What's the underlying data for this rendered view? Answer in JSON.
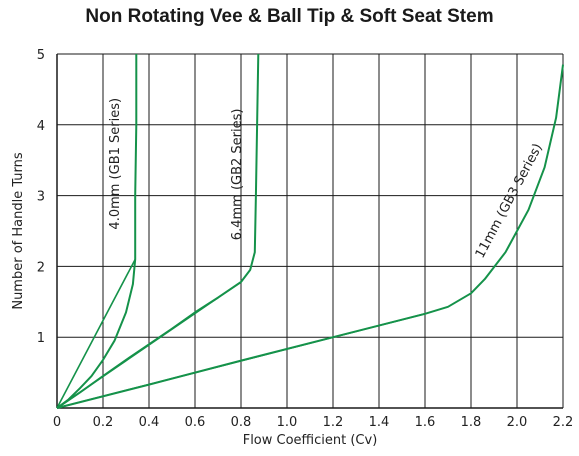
{
  "chart_data": {
    "type": "line",
    "title": "Non Rotating Vee & Ball Tip & Soft Seat Stem",
    "xlabel": "Flow Coefficient (Cv)",
    "ylabel": "Number of Handle Turns",
    "xlim": [
      0,
      2.2
    ],
    "ylim": [
      0,
      5
    ],
    "x_ticks": [
      "0",
      "0.2",
      "0.4",
      "0.6",
      "0.8",
      "1.0",
      "1.2",
      "1.4",
      "1.6",
      "1.8",
      "2.0",
      "2.2"
    ],
    "y_ticks": [
      "1",
      "2",
      "3",
      "4",
      "5"
    ],
    "grid": true,
    "line_color": "#15924a",
    "grid_color": "#1a1a1a",
    "series": [
      {
        "name": "4.0mm (GB1 Series)",
        "points": [
          [
            0,
            0
          ],
          [
            0.05,
            0.12
          ],
          [
            0.1,
            0.28
          ],
          [
            0.15,
            0.45
          ],
          [
            0.2,
            0.68
          ],
          [
            0.25,
            0.95
          ],
          [
            0.3,
            1.35
          ],
          [
            0.33,
            1.75
          ],
          [
            0.34,
            2.1
          ],
          [
            0.34,
            3.0
          ],
          [
            0.345,
            4.0
          ],
          [
            0.345,
            5.0
          ]
        ],
        "straight": [
          [
            0,
            0
          ],
          [
            0.34,
            2.1
          ]
        ]
      },
      {
        "name": "6.4mm (GB2 Series)",
        "points": [
          [
            0,
            0
          ],
          [
            0.1,
            0.22
          ],
          [
            0.2,
            0.45
          ],
          [
            0.3,
            0.68
          ],
          [
            0.4,
            0.9
          ],
          [
            0.5,
            1.12
          ],
          [
            0.6,
            1.35
          ],
          [
            0.7,
            1.56
          ],
          [
            0.8,
            1.78
          ],
          [
            0.84,
            1.95
          ],
          [
            0.86,
            2.2
          ],
          [
            0.865,
            3.0
          ],
          [
            0.87,
            4.0
          ],
          [
            0.875,
            5.0
          ]
        ],
        "straight": [
          [
            0,
            0
          ],
          [
            0.8,
            1.78
          ]
        ]
      },
      {
        "name": "11mm (GB3 Series)",
        "points": [
          [
            0,
            0
          ],
          [
            0.4,
            0.33
          ],
          [
            0.8,
            0.67
          ],
          [
            1.2,
            1.0
          ],
          [
            1.6,
            1.33
          ],
          [
            1.7,
            1.43
          ],
          [
            1.8,
            1.62
          ],
          [
            1.86,
            1.82
          ],
          [
            1.95,
            2.2
          ],
          [
            2.05,
            2.8
          ],
          [
            2.12,
            3.4
          ],
          [
            2.17,
            4.1
          ],
          [
            2.2,
            4.85
          ]
        ],
        "straight": [
          [
            0,
            0
          ],
          [
            1.6,
            1.33
          ]
        ]
      }
    ]
  }
}
